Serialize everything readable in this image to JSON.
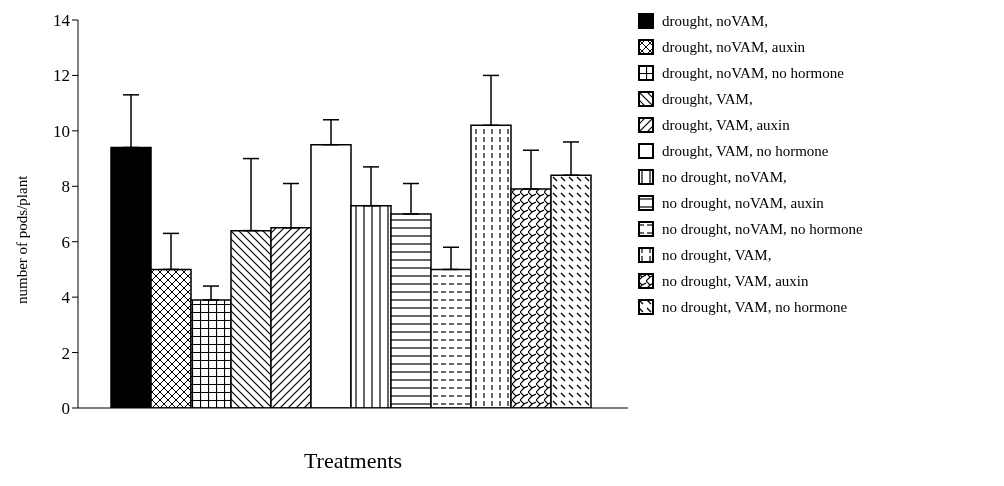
{
  "chart_data": {
    "type": "bar",
    "ylabel": "number of pods/plant",
    "xlabel": "Treatments",
    "categories": [
      null
    ],
    "series": [
      {
        "name": "drought, noVAM,",
        "color": "#000000",
        "values": [
          9.4
        ],
        "errors": [
          [
            9.4,
            11.3
          ]
        ]
      },
      {
        "name": "drought, noVAM, auxin",
        "color": "#000000",
        "values": [
          5.0
        ],
        "errors": [
          [
            5.0,
            6.3
          ]
        ]
      },
      {
        "name": "drought, noVAM, no hormone",
        "color": "#000000",
        "values": [
          3.9
        ],
        "errors": [
          [
            3.9,
            4.4
          ]
        ]
      },
      {
        "name": "drought, VAM,",
        "color": "#000000",
        "values": [
          6.4
        ],
        "errors": [
          [
            6.4,
            9.0
          ]
        ]
      },
      {
        "name": "drought, VAM, auxin",
        "color": "#000000",
        "values": [
          6.5
        ],
        "errors": [
          [
            6.5,
            8.1
          ]
        ]
      },
      {
        "name": "drought, VAM, no hormone",
        "color": "#000000",
        "values": [
          9.5
        ],
        "errors": [
          [
            9.5,
            10.4
          ]
        ]
      },
      {
        "name": "no drought, noVAM,",
        "color": "#000000",
        "values": [
          7.3
        ],
        "errors": [
          [
            7.3,
            8.7
          ]
        ]
      },
      {
        "name": "no drought, noVAM, auxin",
        "color": "#000000",
        "values": [
          7.0
        ],
        "errors": [
          [
            7.0,
            8.1
          ]
        ]
      },
      {
        "name": "no drought, noVAM, no hormone",
        "color": "#000000",
        "values": [
          5.0
        ],
        "errors": [
          [
            5.0,
            5.8
          ]
        ]
      },
      {
        "name": "no drought, VAM,",
        "color": "#000000",
        "values": [
          10.2
        ],
        "errors": [
          [
            10.2,
            12.0
          ]
        ]
      },
      {
        "name": "no drought, VAM, auxin",
        "color": "#000000",
        "values": [
          7.9
        ],
        "errors": [
          [
            7.9,
            9.3
          ]
        ]
      },
      {
        "name": "no drought, VAM, no hormone",
        "color": "#000000",
        "values": [
          8.4
        ],
        "errors": [
          [
            8.4,
            9.6
          ]
        ]
      }
    ],
    "ylim": [
      0,
      14
    ],
    "yticks": [
      0,
      2,
      4,
      6,
      8,
      10,
      12,
      14
    ],
    "grid": false,
    "legend": "right"
  }
}
